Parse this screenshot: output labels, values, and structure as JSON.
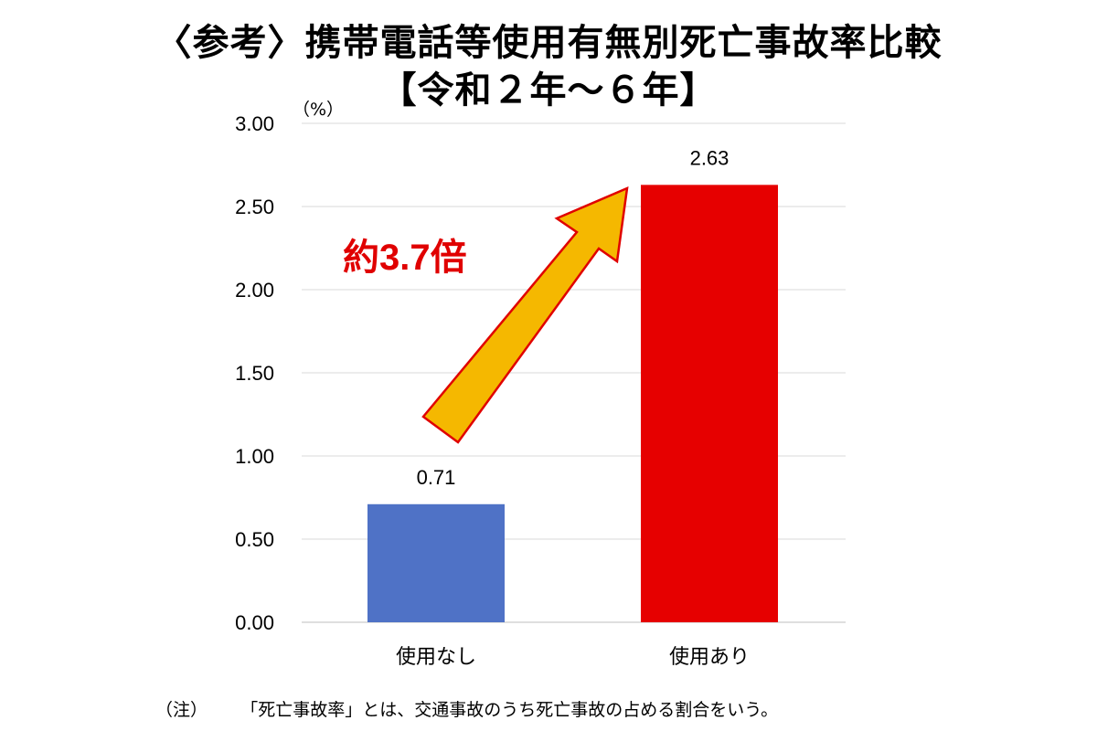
{
  "header": {
    "title": "〈参考〉携帯電話等使用有無別死亡事故率比較",
    "subtitle": "【令和２年～６年】"
  },
  "footnote": {
    "note_label": "（注）",
    "note_text": "「死亡事故率」とは、交通事故のうち死亡事故の占める割合をいう。"
  },
  "annotation": {
    "text": "約3.7倍",
    "color": "#e00000",
    "arrow_color": "#f5b800",
    "arrow_outline": "#e00000"
  },
  "chart_data": {
    "type": "bar",
    "title": "〈参考〉携帯電話等使用有無別死亡事故率比較【令和２年～６年】",
    "ylabel": "（%）",
    "xlabel": "",
    "categories": [
      "使用なし",
      "使用あり"
    ],
    "values": [
      0.71,
      2.63
    ],
    "value_labels": [
      "0.71",
      "2.63"
    ],
    "colors": [
      "#4f72c6",
      "#e60000"
    ],
    "ylim": [
      0,
      3.0
    ],
    "yticks": [
      "0.00",
      "0.50",
      "1.00",
      "1.50",
      "2.00",
      "2.50",
      "3.00"
    ],
    "grid": true,
    "legend": "none"
  }
}
